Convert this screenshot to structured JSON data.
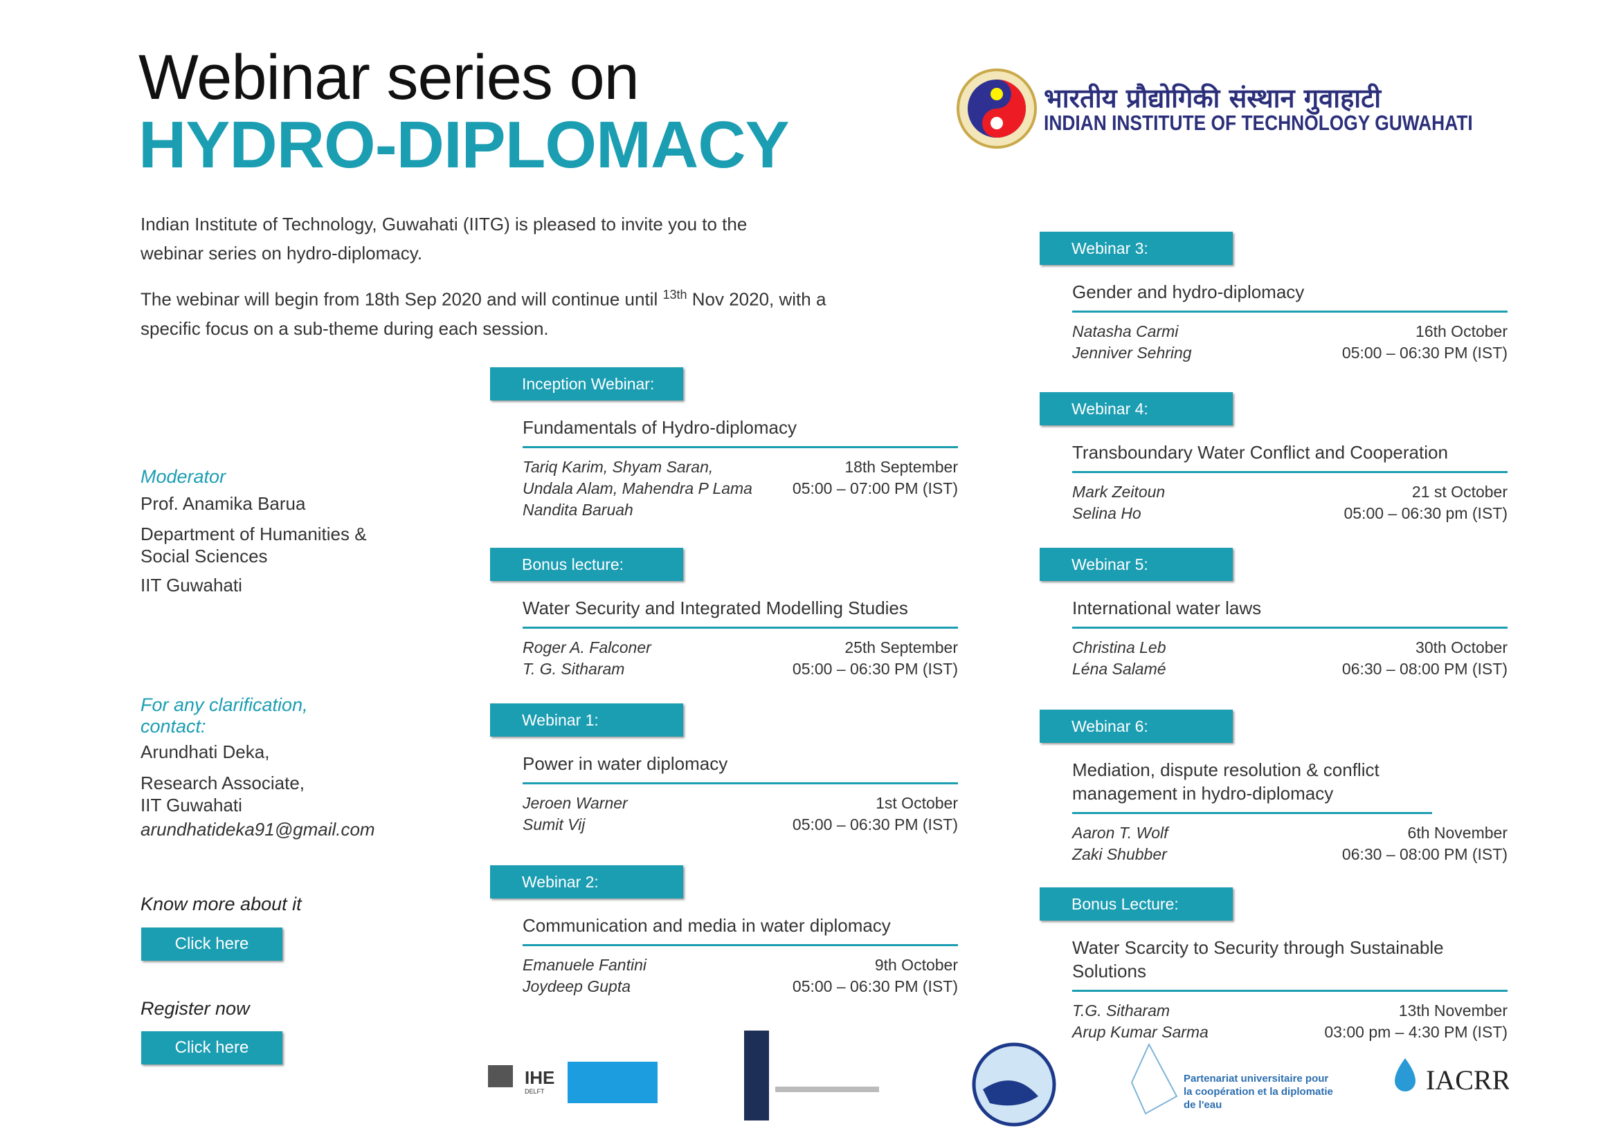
{
  "header": {
    "title_line1": "Webinar series on",
    "title_line2": "HYDRO-DIPLOMACY"
  },
  "institute": {
    "hindi": "भारतीय प्रौद्योगिकी संस्थान गुवाहाटी",
    "english": "INDIAN INSTITUTE OF TECHNOLOGY GUWAHATI"
  },
  "intro": {
    "p1": "Indian Institute of Technology, Guwahati (IITG) is pleased  to invite you to the webinar series on hydro-diplomacy.",
    "p2_before": "The webinar will begin from 18th Sep 2020 and will continue until",
    "p2_sup": "13th",
    "p2_after": "Nov 2020, with a specific focus on a sub-theme during each session."
  },
  "moderator": {
    "label": "Moderator",
    "name": "Prof. Anamika Barua",
    "dept": "Department of Humanities & Social Sciences",
    "inst": "IIT Guwahati"
  },
  "contact": {
    "label": "For any clarification, contact:",
    "name": "Arundhati Deka,",
    "role": "Research Associate, IIT Guwahati",
    "email": "arundhatideka91@gmail.com"
  },
  "actions": [
    {
      "label": "Know more about it",
      "button": "Click here"
    },
    {
      "label": "Register now",
      "button": "Click here"
    }
  ],
  "sessions_left": [
    {
      "tag": "Inception Webinar:",
      "title": "Fundamentals of Hydro-diplomacy",
      "speakers": [
        "Tariq Karim, Shyam Saran,",
        "Undala Alam, Mahendra P Lama",
        "Nandita Baruah"
      ],
      "date": "18th September",
      "time": "05:00 – 07:00 PM (IST)"
    },
    {
      "tag": "Bonus lecture:",
      "title": "Water Security and Integrated Modelling Studies",
      "speakers": [
        "Roger A. Falconer",
        "T. G. Sitharam"
      ],
      "date": "25th September",
      "time": "05:00 – 06:30 PM (IST)"
    },
    {
      "tag": "Webinar 1:",
      "title": "Power in water diplomacy",
      "speakers": [
        "Jeroen Warner",
        "Sumit Vij"
      ],
      "date": "1st October",
      "time": "05:00 – 06:30 PM (IST)"
    },
    {
      "tag": "Webinar 2:",
      "title": "Communication and media in water diplomacy",
      "speakers": [
        "Emanuele Fantini",
        "Joydeep Gupta"
      ],
      "date": "9th October",
      "time": "05:00 – 06:30 PM (IST)"
    }
  ],
  "sessions_right": [
    {
      "tag": "Webinar 3:",
      "title": "Gender and hydro-diplomacy",
      "speakers": [
        "Natasha Carmi",
        "Jenniver Sehring"
      ],
      "date": "16th October",
      "time": "05:00 – 06:30 PM (IST)"
    },
    {
      "tag": "Webinar 4:",
      "title": "Transboundary Water Conflict and Cooperation",
      "speakers": [
        "Mark Zeitoun",
        "Selina Ho"
      ],
      "date": "21 st October",
      "time": "05:00 – 06:30 pm (IST)"
    },
    {
      "tag": "Webinar 5:",
      "title": "International water laws",
      "speakers": [
        "Christina Leb",
        "Léna Salamé"
      ],
      "date": "30th October",
      "time": "06:30 – 08:00 PM (IST)"
    },
    {
      "tag": "Webinar 6:",
      "title": "Mediation, dispute resolution & conflict management in hydro-diplomacy",
      "speakers": [
        "Aaron T. Wolf",
        "Zaki Shubber"
      ],
      "date": "6th November",
      "time": "06:30 – 08:00 PM (IST)"
    },
    {
      "tag": "Bonus Lecture:",
      "title": "Water Scarcity to Security through Sustainable Solutions",
      "speakers": [
        "T.G. Sitharam",
        "Arup Kumar Sarma"
      ],
      "date": "13th  November",
      "time": "03:00 pm – 4:30 PM (IST)"
    }
  ],
  "footer": {
    "ihe": "IHE",
    "delft": "DELFT",
    "partenariat": "Partenariat universitaire pour la coopération et la diplomatie de l'eau",
    "iacrr": "IACRR"
  }
}
